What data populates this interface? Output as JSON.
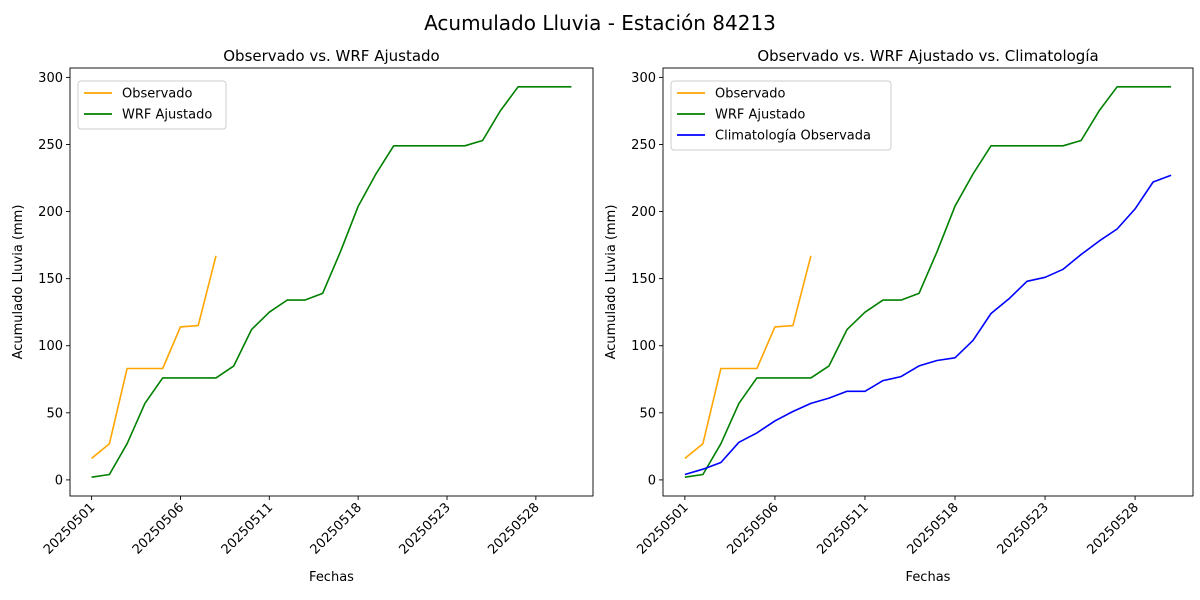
{
  "figure": {
    "title": "Acumulado Lluvia - Estación 84213"
  },
  "colors": {
    "observado": "#ffa500",
    "wrf": "#008000",
    "clim": "#0000ff"
  },
  "chart_data": [
    {
      "type": "line",
      "title": "Observado vs. WRF Ajustado",
      "xlabel": "Fechas",
      "ylabel": "Acumulado Lluvia (mm)",
      "xticks": [
        "20250501",
        "20250506",
        "20250511",
        "20250518",
        "20250523",
        "20250528"
      ],
      "ylim": [
        -12,
        307
      ],
      "yticks": [
        0,
        50,
        100,
        150,
        200,
        250,
        300
      ],
      "legend": "upper-left",
      "series": [
        {
          "name": "Observado",
          "color_key": "observado",
          "x": [
            0,
            1,
            2,
            3,
            4,
            5,
            6,
            7
          ],
          "y": [
            16,
            27,
            83,
            83,
            83,
            114,
            115,
            167
          ]
        },
        {
          "name": "WRF Ajustado",
          "color_key": "wrf",
          "x": [
            0,
            1,
            2,
            3,
            4,
            5,
            6,
            7,
            8,
            9,
            10,
            11,
            12,
            13,
            14,
            15,
            16,
            17,
            18,
            19,
            20,
            21,
            22,
            23,
            24,
            25,
            26,
            27
          ],
          "y": [
            2,
            4,
            27,
            57,
            76,
            76,
            76,
            76,
            85,
            112,
            125,
            134,
            134,
            139,
            170,
            204,
            228,
            249,
            249,
            249,
            249,
            249,
            253,
            275,
            293,
            293,
            293,
            293
          ]
        }
      ]
    },
    {
      "type": "line",
      "title": "Observado vs. WRF Ajustado vs. Climatología",
      "xlabel": "Fechas",
      "ylabel": "Acumulado Lluvia (mm)",
      "xticks": [
        "20250501",
        "20250506",
        "20250511",
        "20250518",
        "20250523",
        "20250528"
      ],
      "ylim": [
        -12,
        307
      ],
      "yticks": [
        0,
        50,
        100,
        150,
        200,
        250,
        300
      ],
      "legend": "upper-left",
      "series": [
        {
          "name": "Observado",
          "color_key": "observado",
          "x": [
            0,
            1,
            2,
            3,
            4,
            5,
            6,
            7
          ],
          "y": [
            16,
            27,
            83,
            83,
            83,
            114,
            115,
            167
          ]
        },
        {
          "name": "WRF Ajustado",
          "color_key": "wrf",
          "x": [
            0,
            1,
            2,
            3,
            4,
            5,
            6,
            7,
            8,
            9,
            10,
            11,
            12,
            13,
            14,
            15,
            16,
            17,
            18,
            19,
            20,
            21,
            22,
            23,
            24,
            25,
            26,
            27
          ],
          "y": [
            2,
            4,
            27,
            57,
            76,
            76,
            76,
            76,
            85,
            112,
            125,
            134,
            134,
            139,
            170,
            204,
            228,
            249,
            249,
            249,
            249,
            249,
            253,
            275,
            293,
            293,
            293,
            293
          ]
        },
        {
          "name": "Climatología Observada",
          "color_key": "clim",
          "x": [
            0,
            1,
            2,
            3,
            4,
            5,
            6,
            7,
            8,
            9,
            10,
            11,
            12,
            13,
            14,
            15,
            16,
            17,
            18,
            19,
            20,
            21,
            22,
            23,
            24,
            25,
            26,
            27
          ],
          "y": [
            4,
            8,
            13,
            28,
            35,
            44,
            51,
            57,
            61,
            66,
            66,
            74,
            77,
            85,
            89,
            91,
            104,
            124,
            135,
            148,
            151,
            157,
            168,
            178,
            187,
            202,
            222,
            227
          ]
        }
      ]
    }
  ]
}
